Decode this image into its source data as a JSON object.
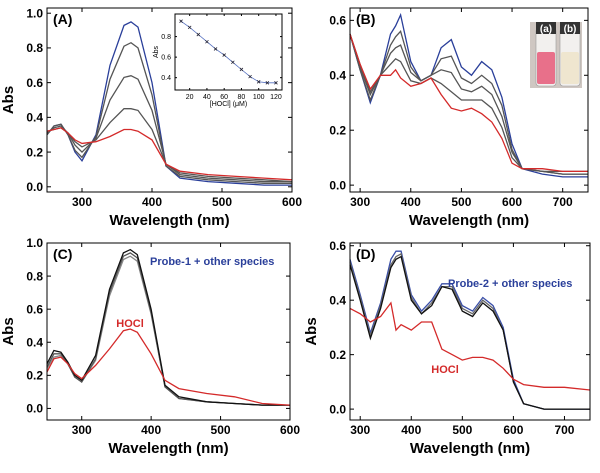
{
  "chart_data": [
    {
      "type": "line",
      "title": "(A)",
      "x_label": "Wavelength (nm)",
      "y_label": "Abs",
      "xlim": [
        250,
        600
      ],
      "ylim": [
        -0.03,
        1.03
      ],
      "xticks": [
        300,
        400,
        500,
        600
      ],
      "yticks": [
        {
          "value": 0,
          "label": "0.0"
        },
        0.2,
        0.4,
        0.6,
        0.8,
        {
          "value": 1,
          "label": "1.0"
        }
      ],
      "x": [
        250,
        260,
        270,
        280,
        290,
        300,
        320,
        340,
        360,
        370,
        380,
        400,
        420,
        440,
        480,
        520,
        560,
        600
      ],
      "series": [
        {
          "color": "#2a3f9a",
          "values": [
            0.3,
            0.35,
            0.36,
            0.3,
            0.2,
            0.15,
            0.3,
            0.7,
            0.93,
            0.95,
            0.92,
            0.6,
            0.12,
            0.05,
            0.03,
            0.02,
            0.01,
            0.01
          ]
        },
        {
          "color": "#555555",
          "values": [
            0.3,
            0.35,
            0.36,
            0.3,
            0.21,
            0.17,
            0.29,
            0.62,
            0.81,
            0.83,
            0.8,
            0.53,
            0.12,
            0.06,
            0.04,
            0.03,
            0.02,
            0.02
          ]
        },
        {
          "color": "#555555",
          "values": [
            0.31,
            0.34,
            0.35,
            0.31,
            0.24,
            0.2,
            0.28,
            0.5,
            0.63,
            0.64,
            0.62,
            0.44,
            0.13,
            0.07,
            0.05,
            0.04,
            0.03,
            0.03
          ]
        },
        {
          "color": "#555555",
          "values": [
            0.32,
            0.33,
            0.34,
            0.31,
            0.26,
            0.23,
            0.27,
            0.37,
            0.45,
            0.45,
            0.44,
            0.33,
            0.13,
            0.08,
            0.06,
            0.05,
            0.04,
            0.03
          ]
        },
        {
          "color": "#d42a2a",
          "values": [
            0.32,
            0.33,
            0.34,
            0.31,
            0.27,
            0.25,
            0.26,
            0.29,
            0.33,
            0.33,
            0.32,
            0.27,
            0.13,
            0.09,
            0.07,
            0.06,
            0.05,
            0.04
          ]
        }
      ]
    },
    {
      "type": "line",
      "title": "(B)",
      "x_label": "Wavelength (nm)",
      "vial_labels": [
        "(a)",
        "(b)"
      ],
      "xlim": [
        280,
        750
      ],
      "ylim": [
        -0.025,
        0.645
      ],
      "xticks": [
        300,
        400,
        500,
        600,
        700
      ],
      "yticks": [
        {
          "value": 0,
          "label": "0.0"
        },
        0.2,
        0.4,
        0.6
      ],
      "x": [
        280,
        300,
        320,
        340,
        360,
        370,
        380,
        400,
        420,
        440,
        460,
        480,
        500,
        520,
        540,
        560,
        580,
        600,
        620,
        660,
        700,
        750
      ],
      "series": [
        {
          "color": "#2a3f9a",
          "values": [
            0.55,
            0.42,
            0.3,
            0.4,
            0.55,
            0.58,
            0.62,
            0.45,
            0.38,
            0.4,
            0.5,
            0.53,
            0.43,
            0.4,
            0.45,
            0.42,
            0.32,
            0.15,
            0.06,
            0.04,
            0.03,
            0.03
          ]
        },
        {
          "color": "#555555",
          "values": [
            0.55,
            0.42,
            0.31,
            0.4,
            0.51,
            0.54,
            0.56,
            0.43,
            0.38,
            0.4,
            0.46,
            0.47,
            0.39,
            0.37,
            0.4,
            0.37,
            0.29,
            0.13,
            0.06,
            0.05,
            0.04,
            0.04
          ]
        },
        {
          "color": "#555555",
          "values": [
            0.55,
            0.43,
            0.33,
            0.4,
            0.48,
            0.5,
            0.51,
            0.41,
            0.38,
            0.4,
            0.42,
            0.41,
            0.35,
            0.34,
            0.36,
            0.33,
            0.25,
            0.12,
            0.06,
            0.05,
            0.04,
            0.04
          ]
        },
        {
          "color": "#555555",
          "values": [
            0.55,
            0.44,
            0.34,
            0.4,
            0.44,
            0.46,
            0.45,
            0.38,
            0.37,
            0.39,
            0.37,
            0.34,
            0.31,
            0.31,
            0.31,
            0.28,
            0.21,
            0.1,
            0.06,
            0.05,
            0.05,
            0.05
          ]
        },
        {
          "color": "#d42a2a",
          "values": [
            0.55,
            0.44,
            0.35,
            0.4,
            0.4,
            0.42,
            0.39,
            0.36,
            0.37,
            0.39,
            0.33,
            0.28,
            0.27,
            0.28,
            0.26,
            0.23,
            0.17,
            0.08,
            0.06,
            0.06,
            0.05,
            0.05
          ]
        }
      ]
    },
    {
      "type": "line",
      "title": "(C)",
      "x_label": "Wavelength (nm)",
      "y_label": "Abs",
      "annotations": [
        {
          "text": "Probe-1 + other species",
          "color": "#2a3f9a"
        },
        {
          "text": "HOCl",
          "color": "#d42a2a"
        }
      ],
      "xlim": [
        250,
        600
      ],
      "ylim": [
        -0.07,
        1.0
      ],
      "xticks": [
        300,
        400,
        500,
        600
      ],
      "yticks": [
        {
          "value": 0,
          "label": "0.0"
        },
        0.2,
        0.4,
        0.6,
        0.8,
        {
          "value": 1,
          "label": "1.0"
        }
      ],
      "x": [
        250,
        260,
        270,
        280,
        290,
        300,
        320,
        340,
        360,
        370,
        380,
        400,
        420,
        440,
        480,
        520,
        560,
        600
      ],
      "series": [
        {
          "color": "#888888",
          "values": [
            0.24,
            0.31,
            0.32,
            0.27,
            0.19,
            0.16,
            0.29,
            0.68,
            0.9,
            0.92,
            0.89,
            0.57,
            0.13,
            0.06,
            0.04,
            0.03,
            0.02,
            0.02
          ]
        },
        {
          "color": "#555555",
          "values": [
            0.25,
            0.33,
            0.33,
            0.27,
            0.19,
            0.16,
            0.3,
            0.7,
            0.92,
            0.94,
            0.91,
            0.58,
            0.13,
            0.06,
            0.04,
            0.03,
            0.02,
            0.02
          ]
        },
        {
          "color": "#111111",
          "values": [
            0.27,
            0.35,
            0.34,
            0.28,
            0.2,
            0.17,
            0.32,
            0.72,
            0.94,
            0.96,
            0.93,
            0.6,
            0.14,
            0.07,
            0.04,
            0.03,
            0.02,
            0.02
          ]
        },
        {
          "color": "#d42a2a",
          "values": [
            0.22,
            0.3,
            0.31,
            0.27,
            0.21,
            0.18,
            0.26,
            0.36,
            0.47,
            0.48,
            0.46,
            0.33,
            0.17,
            0.12,
            0.09,
            0.07,
            0.03,
            0.02
          ]
        }
      ]
    },
    {
      "type": "line",
      "title": "(D)",
      "x_label": "Wavelength (nm)",
      "y_label": "Abs",
      "annotations": [
        {
          "text": "Probe-2 + other species",
          "color": "#2a3f9a"
        },
        {
          "text": "HOCl",
          "color": "#d42a2a"
        }
      ],
      "xlim": [
        280,
        750
      ],
      "ylim": [
        -0.04,
        0.61
      ],
      "xticks": [
        300,
        400,
        500,
        600,
        700
      ],
      "yticks": [
        {
          "value": 0,
          "label": "0.0"
        },
        0.2,
        0.4,
        0.6
      ],
      "x": [
        280,
        300,
        320,
        340,
        360,
        370,
        380,
        400,
        420,
        440,
        460,
        480,
        500,
        520,
        540,
        560,
        580,
        600,
        620,
        660,
        700,
        750
      ],
      "series": [
        {
          "color": "#3a4fa8",
          "values": [
            0.55,
            0.42,
            0.28,
            0.39,
            0.55,
            0.58,
            0.58,
            0.42,
            0.36,
            0.4,
            0.46,
            0.46,
            0.38,
            0.36,
            0.41,
            0.38,
            0.3,
            0.11,
            0.02,
            0.0,
            0.0,
            0.0
          ]
        },
        {
          "color": "#666666",
          "values": [
            0.54,
            0.41,
            0.27,
            0.38,
            0.53,
            0.56,
            0.57,
            0.41,
            0.35,
            0.39,
            0.45,
            0.45,
            0.37,
            0.35,
            0.4,
            0.37,
            0.29,
            0.1,
            0.02,
            0.0,
            0.0,
            0.0
          ]
        },
        {
          "color": "#111111",
          "values": [
            0.53,
            0.4,
            0.26,
            0.37,
            0.52,
            0.55,
            0.56,
            0.4,
            0.35,
            0.38,
            0.45,
            0.44,
            0.36,
            0.34,
            0.39,
            0.36,
            0.29,
            0.1,
            0.02,
            0.0,
            0.0,
            0.0
          ]
        },
        {
          "color": "#d42a2a",
          "values": [
            0.37,
            0.35,
            0.32,
            0.34,
            0.39,
            0.29,
            0.31,
            0.29,
            0.32,
            0.32,
            0.22,
            0.2,
            0.18,
            0.19,
            0.19,
            0.18,
            0.15,
            0.11,
            0.09,
            0.08,
            0.08,
            0.07
          ]
        }
      ]
    },
    {
      "type": "line",
      "x_label": "[HOCl] (μM)",
      "y_label": "Abs",
      "marker": "x",
      "xlim": [
        3,
        127
      ],
      "ylim": [
        0.28,
        1.02
      ],
      "xticks": [
        20,
        40,
        60,
        80,
        100,
        120
      ],
      "yticks": [
        0.4,
        0.6,
        0.8
      ],
      "x": [
        10,
        20,
        30,
        40,
        50,
        60,
        70,
        80,
        90,
        100,
        110,
        120
      ],
      "series": [
        {
          "color": "#5570c0",
          "values": [
            0.95,
            0.89,
            0.82,
            0.75,
            0.68,
            0.62,
            0.55,
            0.48,
            0.41,
            0.36,
            0.35,
            0.35
          ]
        }
      ]
    }
  ]
}
